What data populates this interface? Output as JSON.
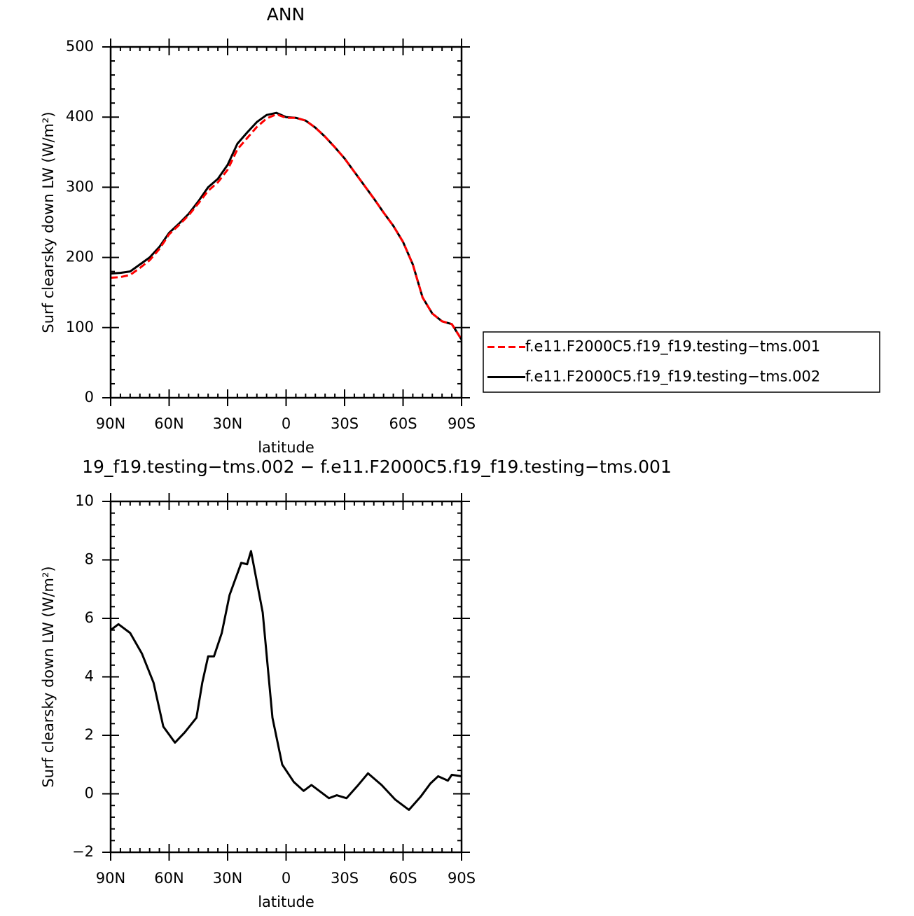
{
  "chart_data": [
    {
      "type": "line",
      "title": "ANN",
      "xlabel": "latitude",
      "ylabel": "Surf clearsky down LW (W/m²)",
      "x": [
        90,
        85,
        80,
        75,
        70,
        65,
        60,
        55,
        50,
        45,
        40,
        35,
        30,
        25,
        20,
        15,
        10,
        5,
        0,
        -5,
        -10,
        -15,
        -20,
        -25,
        -30,
        -35,
        -40,
        -45,
        -50,
        -55,
        -60,
        -65,
        -70,
        -75,
        -80,
        -85,
        -90
      ],
      "series": [
        {
          "name": "f.e11.F2000C5.f19_f19.testing−tms.001",
          "color": "#ff0000",
          "line_style": "dashed",
          "values": [
            171,
            172,
            175,
            185,
            196,
            212,
            233,
            246,
            260,
            277,
            295,
            307,
            325,
            354,
            370,
            386,
            398,
            404,
            399,
            399,
            395,
            385,
            372,
            357,
            341,
            322,
            303,
            284,
            264,
            245,
            222,
            190,
            143,
            120,
            109,
            105,
            83
          ]
        },
        {
          "name": "f.e11.F2000C5.f19_f19.testing−tms.002",
          "color": "#000000",
          "line_style": "solid",
          "values": [
            177,
            178,
            180,
            190,
            200,
            215,
            235,
            248,
            262,
            280,
            300,
            312,
            332,
            362,
            378,
            393,
            403,
            406,
            400,
            399,
            395,
            385,
            372,
            357,
            341,
            322,
            303,
            284,
            264,
            245,
            222,
            190,
            143,
            120,
            109,
            105,
            83
          ]
        }
      ],
      "xlim": [
        90,
        -90
      ],
      "xticks": [
        {
          "value": 90,
          "label": "90N"
        },
        {
          "value": 60,
          "label": "60N"
        },
        {
          "value": 30,
          "label": "30N"
        },
        0,
        {
          "value": -30,
          "label": "30S"
        },
        {
          "value": -60,
          "label": "60S"
        },
        {
          "value": -90,
          "label": "90S"
        }
      ],
      "ylim": [
        0,
        500
      ],
      "yticks": [
        0,
        100,
        200,
        300,
        400,
        500
      ],
      "legend": true
    },
    {
      "type": "line",
      "title": "19_f19.testing−tms.002 − f.e11.F2000C5.f19_f19.testing−tms.001",
      "xlabel": "latitude",
      "ylabel": "Surf clearsky down LW (W/m²)",
      "x": [
        90,
        86,
        80,
        74,
        68,
        63,
        57,
        52,
        46,
        43,
        40,
        37,
        33,
        29,
        23,
        20,
        18,
        12,
        7,
        2,
        -4,
        -9,
        -13,
        -22,
        -26,
        -31,
        -37,
        -42,
        -49,
        -56,
        -63,
        -69,
        -74,
        -78,
        -83,
        -85,
        -90
      ],
      "values": [
        5.6,
        5.8,
        5.5,
        4.8,
        3.8,
        2.3,
        1.75,
        2.1,
        2.6,
        3.8,
        4.7,
        4.7,
        5.5,
        6.8,
        7.9,
        7.85,
        8.3,
        6.2,
        2.6,
        1.0,
        0.4,
        0.1,
        0.3,
        -0.15,
        -0.05,
        -0.15,
        0.3,
        0.7,
        0.3,
        -0.2,
        -0.55,
        -0.1,
        0.35,
        0.6,
        0.45,
        0.65,
        0.6
      ],
      "color": "#000000",
      "xlim": [
        90,
        -90
      ],
      "xticks": [
        {
          "value": 90,
          "label": "90N"
        },
        {
          "value": 60,
          "label": "60N"
        },
        {
          "value": 30,
          "label": "30N"
        },
        0,
        {
          "value": -30,
          "label": "30S"
        },
        {
          "value": -60,
          "label": "60S"
        },
        {
          "value": -90,
          "label": "90S"
        }
      ],
      "ylim": [
        -2,
        10
      ],
      "yticks": [
        {
          "value": -2,
          "label": "−2"
        },
        0,
        2,
        4,
        6,
        8,
        10
      ]
    }
  ]
}
